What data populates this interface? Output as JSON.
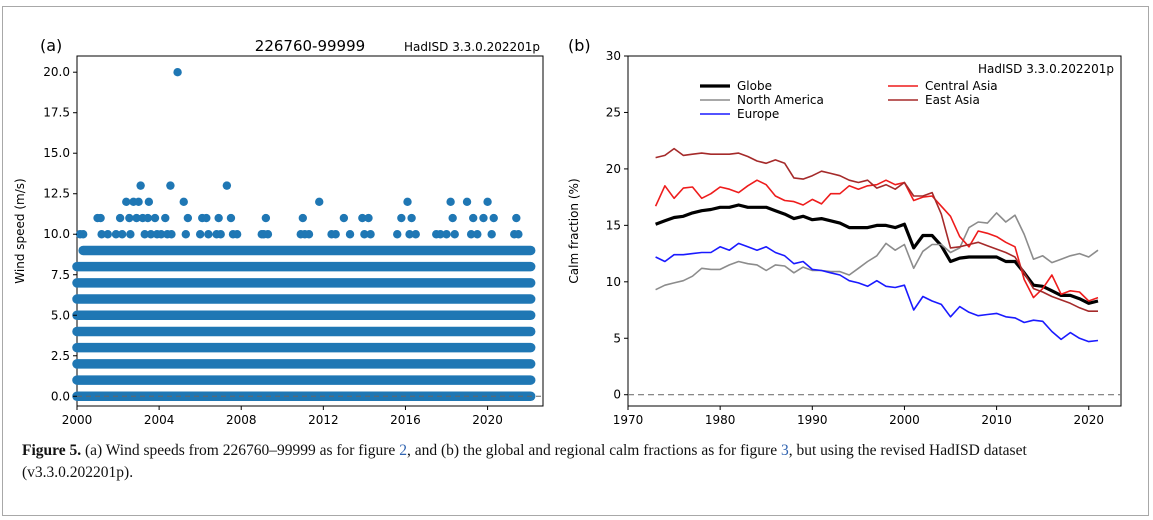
{
  "figure": {
    "caption_label": "Figure 5.",
    "caption_part1": " (a) Wind speeds from 226760–99999 as for figure ",
    "ref_a": "2",
    "caption_part2": ", and (b) the global and regional calm fractions as for figure ",
    "ref_b": "3",
    "caption_part3": ", but using the revised HadISD dataset (v3.3.0.202201p)."
  },
  "chart_data": [
    {
      "panel": "(a)",
      "type": "scatter",
      "title": "226760-99999",
      "annotation": "HadISD 3.3.0.202201p",
      "xlabel": "",
      "ylabel": "Wind speed (m/s)",
      "xlim": [
        2000.0,
        2022.7
      ],
      "ylim": [
        -0.6,
        21.0
      ],
      "xticks": [
        "2000",
        "2004",
        "2008",
        "2012",
        "2016",
        "2020"
      ],
      "yticks": [
        "0.0",
        "2.5",
        "5.0",
        "7.5",
        "10.0",
        "12.5",
        "15.0",
        "17.5",
        "20.0"
      ],
      "marker_color": "#1f77b4",
      "baseline": 0,
      "dense_levels": [
        {
          "y": 0,
          "from": 2000.0,
          "to": 2022.1
        },
        {
          "y": 1,
          "from": 2000.0,
          "to": 2022.1
        },
        {
          "y": 2,
          "from": 2000.0,
          "to": 2022.1
        },
        {
          "y": 3,
          "from": 2000.0,
          "to": 2022.1
        },
        {
          "y": 4,
          "from": 2000.0,
          "to": 2022.1
        },
        {
          "y": 5,
          "from": 2000.0,
          "to": 2022.1
        },
        {
          "y": 6,
          "from": 2000.0,
          "to": 2022.1
        },
        {
          "y": 7,
          "from": 2000.0,
          "to": 2022.1
        },
        {
          "y": 8,
          "from": 2000.0,
          "to": 2022.1
        },
        {
          "y": 9,
          "from": 2000.3,
          "to": 2022.1
        }
      ],
      "points": [
        {
          "x": 2000.15,
          "y": 10
        },
        {
          "x": 2000.3,
          "y": 10
        },
        {
          "x": 2001.0,
          "y": 11
        },
        {
          "x": 2001.15,
          "y": 11
        },
        {
          "x": 2001.2,
          "y": 10
        },
        {
          "x": 2001.5,
          "y": 10
        },
        {
          "x": 2001.9,
          "y": 10
        },
        {
          "x": 2002.1,
          "y": 11
        },
        {
          "x": 2002.2,
          "y": 10
        },
        {
          "x": 2002.4,
          "y": 12
        },
        {
          "x": 2002.55,
          "y": 11
        },
        {
          "x": 2002.6,
          "y": 10
        },
        {
          "x": 2002.75,
          "y": 12
        },
        {
          "x": 2002.9,
          "y": 11
        },
        {
          "x": 2003.0,
          "y": 12
        },
        {
          "x": 2003.1,
          "y": 13
        },
        {
          "x": 2003.2,
          "y": 11
        },
        {
          "x": 2003.3,
          "y": 10
        },
        {
          "x": 2003.45,
          "y": 11
        },
        {
          "x": 2003.5,
          "y": 12
        },
        {
          "x": 2003.6,
          "y": 10
        },
        {
          "x": 2003.8,
          "y": 11
        },
        {
          "x": 2003.9,
          "y": 10
        },
        {
          "x": 2004.1,
          "y": 10
        },
        {
          "x": 2004.3,
          "y": 11
        },
        {
          "x": 2004.4,
          "y": 10
        },
        {
          "x": 2004.55,
          "y": 13
        },
        {
          "x": 2004.6,
          "y": 10
        },
        {
          "x": 2004.9,
          "y": 20
        },
        {
          "x": 2005.2,
          "y": 12
        },
        {
          "x": 2005.3,
          "y": 10
        },
        {
          "x": 2005.4,
          "y": 11
        },
        {
          "x": 2006.0,
          "y": 10
        },
        {
          "x": 2006.1,
          "y": 11
        },
        {
          "x": 2006.3,
          "y": 11
        },
        {
          "x": 2006.4,
          "y": 10
        },
        {
          "x": 2006.8,
          "y": 10
        },
        {
          "x": 2006.9,
          "y": 11
        },
        {
          "x": 2007.0,
          "y": 10
        },
        {
          "x": 2007.3,
          "y": 13
        },
        {
          "x": 2007.5,
          "y": 11
        },
        {
          "x": 2007.6,
          "y": 10
        },
        {
          "x": 2007.8,
          "y": 10
        },
        {
          "x": 2009.0,
          "y": 10
        },
        {
          "x": 2009.1,
          "y": 10
        },
        {
          "x": 2009.2,
          "y": 11
        },
        {
          "x": 2009.3,
          "y": 10
        },
        {
          "x": 2010.9,
          "y": 10
        },
        {
          "x": 2011.0,
          "y": 11
        },
        {
          "x": 2011.1,
          "y": 10
        },
        {
          "x": 2011.3,
          "y": 10
        },
        {
          "x": 2011.8,
          "y": 12
        },
        {
          "x": 2012.4,
          "y": 10
        },
        {
          "x": 2012.6,
          "y": 10
        },
        {
          "x": 2013.0,
          "y": 11
        },
        {
          "x": 2013.3,
          "y": 10
        },
        {
          "x": 2013.9,
          "y": 11
        },
        {
          "x": 2014.0,
          "y": 10
        },
        {
          "x": 2014.2,
          "y": 11
        },
        {
          "x": 2014.3,
          "y": 10
        },
        {
          "x": 2015.6,
          "y": 10
        },
        {
          "x": 2015.8,
          "y": 11
        },
        {
          "x": 2016.1,
          "y": 12
        },
        {
          "x": 2016.2,
          "y": 10
        },
        {
          "x": 2016.3,
          "y": 11
        },
        {
          "x": 2016.5,
          "y": 10
        },
        {
          "x": 2017.5,
          "y": 10
        },
        {
          "x": 2017.7,
          "y": 10
        },
        {
          "x": 2018.0,
          "y": 10
        },
        {
          "x": 2018.2,
          "y": 12
        },
        {
          "x": 2018.3,
          "y": 11
        },
        {
          "x": 2018.4,
          "y": 10
        },
        {
          "x": 2019.0,
          "y": 12
        },
        {
          "x": 2019.2,
          "y": 10
        },
        {
          "x": 2019.3,
          "y": 11
        },
        {
          "x": 2019.5,
          "y": 10
        },
        {
          "x": 2019.8,
          "y": 11
        },
        {
          "x": 2020.0,
          "y": 12
        },
        {
          "x": 2020.2,
          "y": 10
        },
        {
          "x": 2020.3,
          "y": 11
        },
        {
          "x": 2021.3,
          "y": 10
        },
        {
          "x": 2021.4,
          "y": 11
        },
        {
          "x": 2021.5,
          "y": 10
        }
      ]
    },
    {
      "panel": "(b)",
      "type": "line",
      "title": "",
      "annotation": "HadISD 3.3.0.202201p",
      "xlabel": "",
      "ylabel": "Calm fraction (%)",
      "xlim": [
        1970,
        2023.5
      ],
      "ylim": [
        -1,
        30
      ],
      "xticks": [
        1970,
        1980,
        1990,
        2000,
        2010,
        2020
      ],
      "yticks": [
        0,
        5,
        10,
        15,
        20,
        25,
        30
      ],
      "reference_line": 0,
      "x": [
        1973,
        1974,
        1975,
        1976,
        1977,
        1978,
        1979,
        1980,
        1981,
        1982,
        1983,
        1984,
        1985,
        1986,
        1987,
        1988,
        1989,
        1990,
        1991,
        1992,
        1993,
        1994,
        1995,
        1996,
        1997,
        1998,
        1999,
        2000,
        2001,
        2002,
        2003,
        2004,
        2005,
        2006,
        2007,
        2008,
        2009,
        2010,
        2011,
        2012,
        2013,
        2014,
        2015,
        2016,
        2017,
        2018,
        2019,
        2020,
        2021
      ],
      "series": [
        {
          "name": "Globe",
          "color": "#000000",
          "width": 3.2,
          "values": [
            15.1,
            15.4,
            15.7,
            15.8,
            16.1,
            16.3,
            16.4,
            16.6,
            16.6,
            16.8,
            16.6,
            16.6,
            16.6,
            16.3,
            16.0,
            15.6,
            15.8,
            15.5,
            15.6,
            15.4,
            15.2,
            14.8,
            14.8,
            14.8,
            15.0,
            15.0,
            14.8,
            15.1,
            13.0,
            14.1,
            14.1,
            13.2,
            11.8,
            12.1,
            12.2,
            12.2,
            12.2,
            12.2,
            11.8,
            11.8,
            10.8,
            9.7,
            9.6,
            9.2,
            8.8,
            8.8,
            8.5,
            8.1,
            8.3
          ]
        },
        {
          "name": "North America",
          "color": "#8c8c8c",
          "width": 1.6,
          "values": [
            9.3,
            9.7,
            9.9,
            10.1,
            10.5,
            11.2,
            11.1,
            11.1,
            11.5,
            11.8,
            11.6,
            11.5,
            11.0,
            11.5,
            11.4,
            10.8,
            11.3,
            11.0,
            11.0,
            10.9,
            10.9,
            10.6,
            11.2,
            11.8,
            12.3,
            13.4,
            12.8,
            13.3,
            11.2,
            12.7,
            13.3,
            13.3,
            12.6,
            13.0,
            14.8,
            15.3,
            15.2,
            16.1,
            15.3,
            15.9,
            14.2,
            12.0,
            12.3,
            11.7,
            12.0,
            12.3,
            12.5,
            12.2,
            12.8
          ]
        },
        {
          "name": "Europe",
          "color": "#1a1aff",
          "width": 1.6,
          "values": [
            12.2,
            11.8,
            12.4,
            12.4,
            12.5,
            12.6,
            12.6,
            13.1,
            12.8,
            13.4,
            13.1,
            12.8,
            13.1,
            12.6,
            12.3,
            11.6,
            11.8,
            11.1,
            11.0,
            10.8,
            10.6,
            10.1,
            9.9,
            9.6,
            10.1,
            9.6,
            9.5,
            9.7,
            7.5,
            8.7,
            8.3,
            8.0,
            6.9,
            7.8,
            7.3,
            7.0,
            7.1,
            7.2,
            6.9,
            6.8,
            6.4,
            6.6,
            6.5,
            5.6,
            4.9,
            5.5,
            5.0,
            4.7,
            4.8
          ]
        },
        {
          "name": "Central Asia",
          "color": "#ee1c1c",
          "width": 1.6,
          "values": [
            16.7,
            18.5,
            17.4,
            18.3,
            18.4,
            17.4,
            17.8,
            18.4,
            18.2,
            17.9,
            18.5,
            19.0,
            18.6,
            17.6,
            17.2,
            17.1,
            16.8,
            17.3,
            16.9,
            17.8,
            17.8,
            18.5,
            18.2,
            18.5,
            18.6,
            19.0,
            18.6,
            18.8,
            17.2,
            17.5,
            17.6,
            16.7,
            15.8,
            14.0,
            13.1,
            14.5,
            14.3,
            14.0,
            13.5,
            13.1,
            10.2,
            8.6,
            9.4,
            10.6,
            8.9,
            9.2,
            9.1,
            8.3,
            8.6
          ]
        },
        {
          "name": "East Asia",
          "color": "#a52a2a",
          "width": 1.6,
          "values": [
            21.0,
            21.2,
            21.8,
            21.2,
            21.3,
            21.4,
            21.3,
            21.3,
            21.3,
            21.4,
            21.1,
            20.7,
            20.5,
            20.8,
            20.5,
            19.2,
            19.1,
            19.4,
            19.8,
            19.6,
            19.4,
            19.0,
            18.8,
            19.0,
            18.3,
            18.6,
            18.2,
            18.8,
            17.6,
            17.6,
            17.9,
            16.0,
            13.0,
            13.1,
            13.3,
            13.5,
            13.2,
            12.9,
            12.6,
            12.2,
            10.8,
            9.4,
            9.1,
            8.7,
            8.4,
            8.1,
            7.7,
            7.4,
            7.4
          ]
        }
      ],
      "legend": {
        "placement": "top-center"
      }
    }
  ]
}
